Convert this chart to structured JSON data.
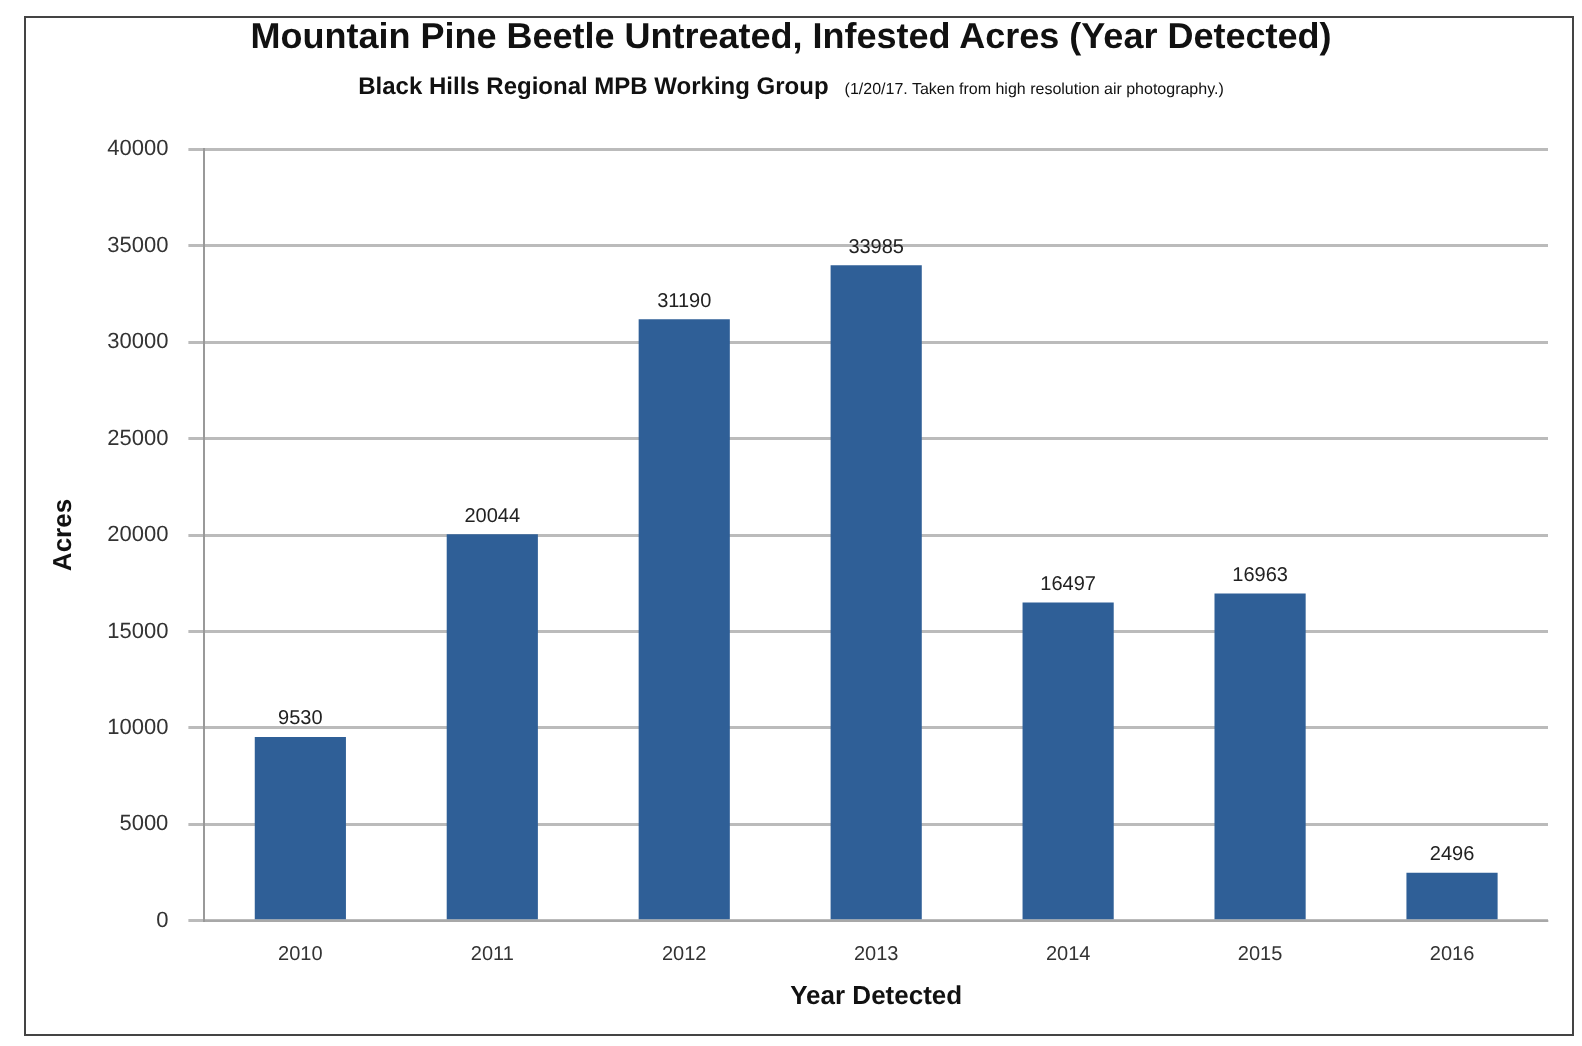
{
  "chart_data": {
    "type": "bar",
    "title": "Mountain Pine Beetle Untreated, Infested Acres (Year Detected)",
    "subtitle": "Black Hills Regional MPB Working Group",
    "annotations": [
      "(1/20/17. Taken from high resolution air photography.)"
    ],
    "xlabel": "Year Detected",
    "ylabel": "Acres",
    "categories": [
      "2010",
      "2011",
      "2012",
      "2013",
      "2014",
      "2015",
      "2016"
    ],
    "values": [
      9530,
      20044,
      31190,
      33985,
      16497,
      16963,
      2496
    ],
    "color": "#2f5f97",
    "ylim": [
      0,
      40000
    ],
    "yticks": [
      0,
      5000,
      10000,
      15000,
      20000,
      25000,
      30000,
      35000,
      40000
    ],
    "grid": "y",
    "data_labels": true
  }
}
